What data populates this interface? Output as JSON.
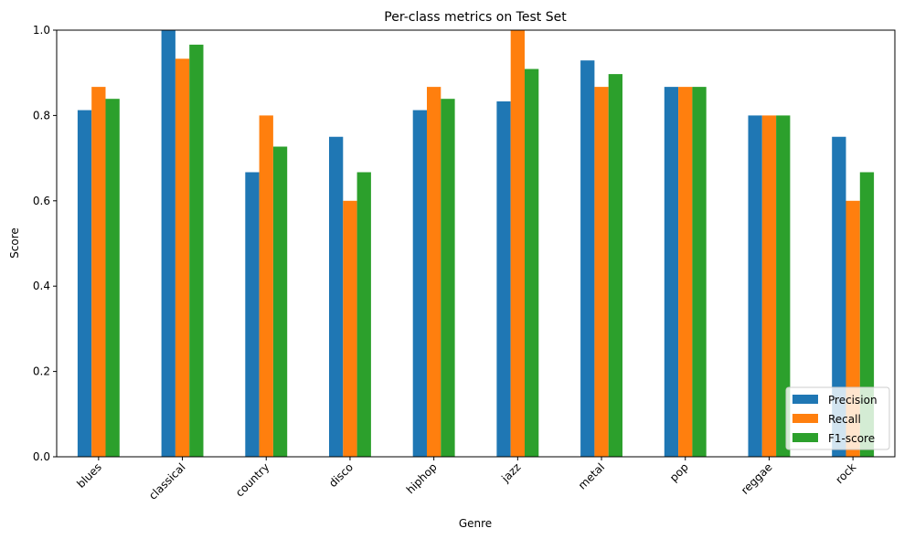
{
  "chart_data": {
    "type": "bar",
    "title": "Per-class metrics on Test Set",
    "xlabel": "Genre",
    "ylabel": "Score",
    "ylim": [
      0,
      1.0
    ],
    "yticks": [
      "0.0",
      "0.2",
      "0.4",
      "0.6",
      "0.8",
      "1.0"
    ],
    "categories": [
      "blues",
      "classical",
      "country",
      "disco",
      "hiphop",
      "jazz",
      "metal",
      "pop",
      "reggae",
      "rock"
    ],
    "series": [
      {
        "name": "Precision",
        "color": "#1f77b4",
        "values": [
          0.8125,
          1.0,
          0.667,
          0.75,
          0.8125,
          0.833,
          0.929,
          0.867,
          0.8,
          0.75
        ]
      },
      {
        "name": "Recall",
        "color": "#ff7f0e",
        "values": [
          0.867,
          0.933,
          0.8,
          0.6,
          0.867,
          1.0,
          0.867,
          0.867,
          0.8,
          0.6
        ]
      },
      {
        "name": "F1-score",
        "color": "#2ca02c",
        "values": [
          0.839,
          0.966,
          0.727,
          0.667,
          0.839,
          0.909,
          0.897,
          0.867,
          0.8,
          0.667
        ]
      }
    ],
    "legend_position": "lower right",
    "grid": false
  }
}
